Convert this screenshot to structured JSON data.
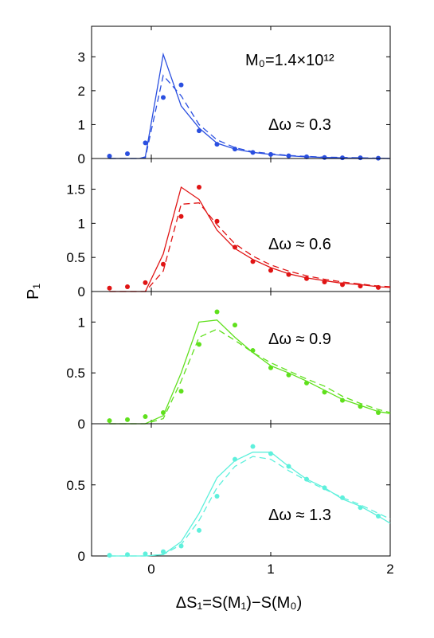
{
  "figure": {
    "xlabel": "ΔS₁=S(M₁)−S(M₀)",
    "ylabel": "P₁",
    "annotation_mass": "M₀=1.4×10¹²",
    "background": "#ffffff"
  },
  "chart_data": [
    {
      "type": "line",
      "annotation": "Δω ≈ 0.3",
      "color": "#2a4fe0",
      "xlim": [
        -0.5,
        2
      ],
      "ylim": [
        0,
        3.9
      ],
      "xticks": [
        0,
        1,
        2
      ],
      "yticks": [
        0,
        1,
        2,
        3
      ],
      "show_xticklabels": false,
      "series": [
        {
          "style": "solid",
          "x": [
            -0.35,
            -0.2,
            -0.1,
            -0.05,
            0.1,
            0.25,
            0.4,
            0.55,
            0.7,
            0.85,
            1.0,
            1.15,
            1.3,
            1.45,
            1.6,
            1.75,
            1.9,
            2.0
          ],
          "y": [
            0,
            0,
            0,
            0.05,
            3.07,
            1.55,
            0.9,
            0.45,
            0.28,
            0.18,
            0.12,
            0.08,
            0.05,
            0.03,
            0.02,
            0.01,
            0.01,
            0.0
          ]
        },
        {
          "style": "dashed",
          "x": [
            -0.35,
            -0.2,
            -0.1,
            -0.05,
            0.1,
            0.25,
            0.4,
            0.55,
            0.7,
            0.85,
            1.0,
            1.15,
            1.3,
            1.45,
            1.6,
            1.75,
            1.9,
            2.0
          ],
          "y": [
            0,
            0,
            0,
            0.02,
            2.45,
            1.85,
            1.0,
            0.55,
            0.32,
            0.2,
            0.14,
            0.09,
            0.06,
            0.04,
            0.03,
            0.02,
            0.01,
            0.0
          ]
        },
        {
          "style": "points",
          "x": [
            -0.35,
            -0.2,
            -0.05,
            0.1,
            0.25,
            0.4,
            0.55,
            0.7,
            0.85,
            1.0,
            1.15,
            1.3,
            1.45,
            1.6,
            1.75,
            1.9
          ],
          "y": [
            0.07,
            0.14,
            0.46,
            1.8,
            2.17,
            0.82,
            0.42,
            0.28,
            0.18,
            0.12,
            0.08,
            0.05,
            0.03,
            0.02,
            0.02,
            0.01
          ]
        }
      ]
    },
    {
      "type": "line",
      "annotation": "Δω ≈ 0.6",
      "color": "#e01414",
      "xlim": [
        -0.5,
        2
      ],
      "ylim": [
        0,
        1.95
      ],
      "xticks": [
        0,
        1,
        2
      ],
      "yticks": [
        0,
        0.5,
        1,
        1.5
      ],
      "show_xticklabels": false,
      "series": [
        {
          "style": "solid",
          "x": [
            -0.35,
            -0.2,
            -0.05,
            0.1,
            0.25,
            0.4,
            0.55,
            0.7,
            0.85,
            1.0,
            1.15,
            1.3,
            1.45,
            1.6,
            1.75,
            1.9,
            2.0
          ],
          "y": [
            0,
            0,
            0,
            0.55,
            1.53,
            1.35,
            0.9,
            0.63,
            0.47,
            0.35,
            0.26,
            0.2,
            0.16,
            0.12,
            0.1,
            0.07,
            0.06
          ]
        },
        {
          "style": "dashed",
          "x": [
            -0.35,
            -0.2,
            -0.05,
            0.1,
            0.25,
            0.4,
            0.55,
            0.7,
            0.85,
            1.0,
            1.15,
            1.3,
            1.45,
            1.6,
            1.75,
            1.9,
            2.0
          ],
          "y": [
            0,
            0,
            0,
            0.3,
            1.28,
            1.3,
            0.98,
            0.7,
            0.52,
            0.39,
            0.3,
            0.23,
            0.18,
            0.14,
            0.11,
            0.08,
            0.07
          ]
        },
        {
          "style": "points",
          "x": [
            -0.35,
            -0.2,
            -0.05,
            0.1,
            0.25,
            0.4,
            0.55,
            0.7,
            0.85,
            1.0,
            1.15,
            1.3,
            1.45,
            1.6,
            1.75,
            1.9
          ],
          "y": [
            0.05,
            0.07,
            0.13,
            0.4,
            1.1,
            1.53,
            1.03,
            0.65,
            0.44,
            0.31,
            0.25,
            0.19,
            0.14,
            0.1,
            0.08,
            0.06
          ]
        }
      ]
    },
    {
      "type": "line",
      "annotation": "Δω ≈ 0.9",
      "color": "#5fe01c",
      "xlim": [
        -0.5,
        2
      ],
      "ylim": [
        0,
        1.3
      ],
      "xticks": [
        0,
        1,
        2
      ],
      "yticks": [
        0,
        0.5,
        1
      ],
      "show_xticklabels": false,
      "series": [
        {
          "style": "solid",
          "x": [
            -0.35,
            -0.2,
            -0.05,
            0.1,
            0.25,
            0.4,
            0.55,
            0.7,
            0.85,
            1.0,
            1.15,
            1.3,
            1.45,
            1.6,
            1.75,
            1.9,
            2.0
          ],
          "y": [
            0,
            0,
            0,
            0.08,
            0.5,
            1.0,
            1.02,
            0.85,
            0.7,
            0.57,
            0.5,
            0.42,
            0.33,
            0.24,
            0.18,
            0.12,
            0.1
          ]
        },
        {
          "style": "dashed",
          "x": [
            -0.35,
            -0.2,
            -0.05,
            0.1,
            0.25,
            0.4,
            0.55,
            0.7,
            0.85,
            1.0,
            1.15,
            1.3,
            1.45,
            1.6,
            1.75,
            1.9,
            2.0
          ],
          "y": [
            0,
            0,
            0,
            0.05,
            0.42,
            0.85,
            0.93,
            0.82,
            0.7,
            0.6,
            0.52,
            0.44,
            0.37,
            0.27,
            0.2,
            0.14,
            0.11
          ]
        },
        {
          "style": "points",
          "x": [
            -0.35,
            -0.2,
            -0.05,
            0.1,
            0.25,
            0.4,
            0.55,
            0.7,
            0.85,
            1.0,
            1.15,
            1.3,
            1.45,
            1.6,
            1.75,
            1.9
          ],
          "y": [
            0.03,
            0.04,
            0.07,
            0.11,
            0.32,
            0.78,
            1.1,
            0.97,
            0.72,
            0.55,
            0.48,
            0.4,
            0.31,
            0.23,
            0.17,
            0.11
          ]
        }
      ]
    },
    {
      "type": "line",
      "annotation": "Δω ≈ 1.3",
      "color": "#5ef0dc",
      "xlim": [
        -0.5,
        2
      ],
      "ylim": [
        0,
        0.93
      ],
      "xticks": [
        0,
        1,
        2
      ],
      "yticks": [
        0,
        0.5
      ],
      "show_xticklabels": true,
      "series": [
        {
          "style": "solid",
          "x": [
            -0.35,
            -0.2,
            -0.05,
            0.1,
            0.25,
            0.4,
            0.55,
            0.7,
            0.85,
            1.0,
            1.15,
            1.3,
            1.45,
            1.6,
            1.75,
            1.9,
            2.0
          ],
          "y": [
            0,
            0,
            0,
            0.01,
            0.1,
            0.3,
            0.55,
            0.67,
            0.73,
            0.73,
            0.63,
            0.54,
            0.48,
            0.4,
            0.35,
            0.28,
            0.23
          ]
        },
        {
          "style": "dashed",
          "x": [
            -0.35,
            -0.2,
            -0.05,
            0.1,
            0.25,
            0.4,
            0.55,
            0.7,
            0.85,
            1.0,
            1.15,
            1.3,
            1.45,
            1.6,
            1.75,
            1.9,
            2.0
          ],
          "y": [
            0,
            0,
            0,
            0.01,
            0.08,
            0.25,
            0.48,
            0.63,
            0.7,
            0.68,
            0.6,
            0.53,
            0.47,
            0.41,
            0.36,
            0.3,
            0.26
          ]
        },
        {
          "style": "points",
          "x": [
            -0.35,
            -0.2,
            -0.05,
            0.1,
            0.25,
            0.4,
            0.55,
            0.7,
            0.85,
            1.0,
            1.15,
            1.3,
            1.45,
            1.6,
            1.75,
            1.9
          ],
          "y": [
            0.005,
            0.01,
            0.015,
            0.03,
            0.07,
            0.18,
            0.42,
            0.68,
            0.77,
            0.72,
            0.63,
            0.54,
            0.48,
            0.41,
            0.34,
            0.28
          ]
        }
      ]
    }
  ]
}
